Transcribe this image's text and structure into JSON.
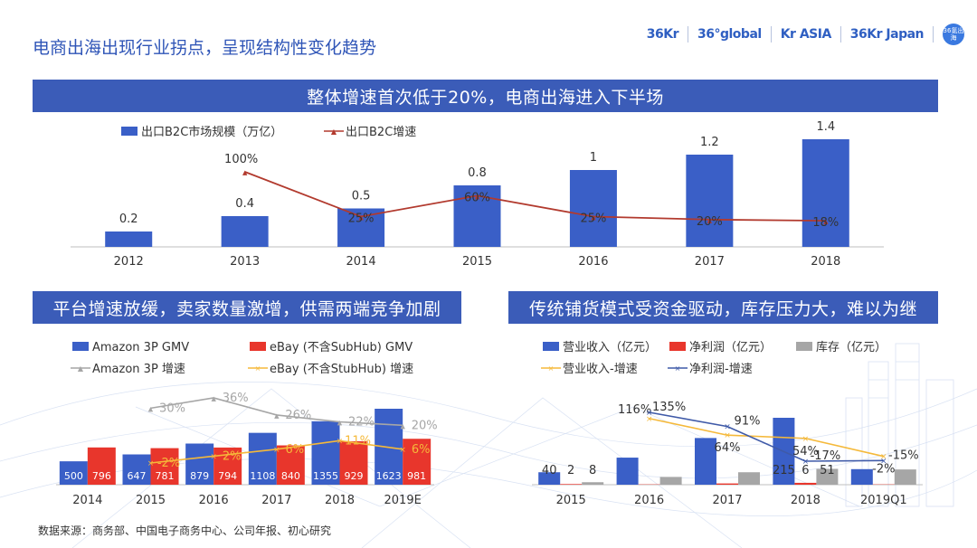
{
  "page": {
    "title": "电商出海出现行业拐点，呈现结构性变化趋势",
    "source": "数据来源：商务部、中国电子商务中心、公司年报、初心研究"
  },
  "logos": [
    "36Kr",
    "36°global",
    "Kr ASIA",
    "36Kr Japan",
    "36氪出海"
  ],
  "banners": {
    "top": "整体增速首次低于20%，电商出海进入下半场",
    "bottom_left": "平台增速放缓，卖家数量激增，供需两端竞争加剧",
    "bottom_right": "传统铺货模式受资金驱动，库存压力大，难以为继"
  },
  "colors": {
    "blue": "#3a5fc7",
    "dark_red": "#b23a2e",
    "red": "#e8362c",
    "gray": "#a6a6a6",
    "orange": "#f5b93a",
    "navy_line": "#3f5aa8",
    "banner": "#3b5cb8"
  },
  "chart_data": [
    {
      "id": "top",
      "type": "bar",
      "categories": [
        "2012",
        "2013",
        "2014",
        "2015",
        "2016",
        "2017",
        "2018"
      ],
      "series": [
        {
          "name": "出口B2C市场规模（万亿）",
          "kind": "bar",
          "values": [
            0.2,
            0.4,
            0.5,
            0.8,
            1,
            1.2,
            1.4
          ],
          "labels": [
            "0.2",
            "0.4",
            "0.5",
            "0.8",
            "1",
            "1.2",
            "1.4"
          ]
        },
        {
          "name": "出口B2C增速",
          "kind": "line",
          "values": [
            null,
            100,
            25,
            60,
            25,
            20,
            18
          ],
          "labels": [
            "",
            "100%",
            "25%",
            "60%",
            "25%",
            "20%",
            "18%"
          ]
        }
      ],
      "ylim": [
        0,
        1.4
      ],
      "y2lim": [
        0,
        100
      ]
    },
    {
      "id": "bottom_left",
      "type": "bar",
      "categories": [
        "2014",
        "2015",
        "2016",
        "2017",
        "2018",
        "2019E"
      ],
      "series": [
        {
          "name": "Amazon 3P GMV",
          "kind": "bar",
          "values": [
            500,
            647,
            879,
            1108,
            1355,
            1623
          ],
          "labels": [
            "500",
            "647",
            "879",
            "1108",
            "1355",
            "1623"
          ]
        },
        {
          "name": "eBay (不含SubHub) GMV",
          "kind": "bar",
          "values": [
            796,
            781,
            794,
            840,
            929,
            981
          ],
          "labels": [
            "796",
            "781",
            "794",
            "840",
            "929",
            "981"
          ]
        },
        {
          "name": "Amazon 3P 增速",
          "kind": "line",
          "values": [
            null,
            30,
            36,
            26,
            22,
            20
          ],
          "labels": [
            "",
            "30%",
            "36%",
            "26%",
            "22%",
            "20%"
          ]
        },
        {
          "name": "eBay (不含StubHub) 增速",
          "kind": "line",
          "values": [
            null,
            -2,
            2,
            6,
            11,
            6
          ],
          "labels": [
            "",
            "-2%",
            "2%",
            "6%",
            "11%",
            "6%"
          ]
        }
      ],
      "ylim": [
        0,
        1623
      ],
      "y2lim": [
        -2,
        36
      ]
    },
    {
      "id": "bottom_right",
      "type": "bar",
      "categories": [
        "2015",
        "2016",
        "2017",
        "2018",
        "2019Q1"
      ],
      "series": [
        {
          "name": "营业收入（亿元）",
          "kind": "bar",
          "values": [
            40,
            87,
            150,
            215,
            50
          ],
          "labels": [
            "40",
            "",
            "",
            "215",
            ""
          ]
        },
        {
          "name": "净利润（亿元）",
          "kind": "bar",
          "values": [
            2,
            1,
            4,
            6,
            1
          ],
          "labels": [
            "2",
            "",
            "",
            "6",
            ""
          ]
        },
        {
          "name": "库存（亿元）",
          "kind": "bar",
          "values": [
            8,
            25,
            40,
            51,
            49
          ],
          "labels": [
            "8",
            "",
            "",
            "51",
            ""
          ]
        },
        {
          "name": "营业收入-增速",
          "kind": "line",
          "values": [
            null,
            116,
            64,
            54,
            -2
          ],
          "labels": [
            "",
            "116%",
            "64%",
            "54%",
            "-2%"
          ]
        },
        {
          "name": "净利润-增速",
          "kind": "line",
          "values": [
            null,
            135,
            91,
            -17,
            -15
          ],
          "labels": [
            "",
            "135%",
            "91%",
            "-17%",
            "-15%"
          ]
        }
      ],
      "ylim": [
        0,
        215
      ],
      "y2lim": [
        -17,
        135
      ]
    }
  ]
}
